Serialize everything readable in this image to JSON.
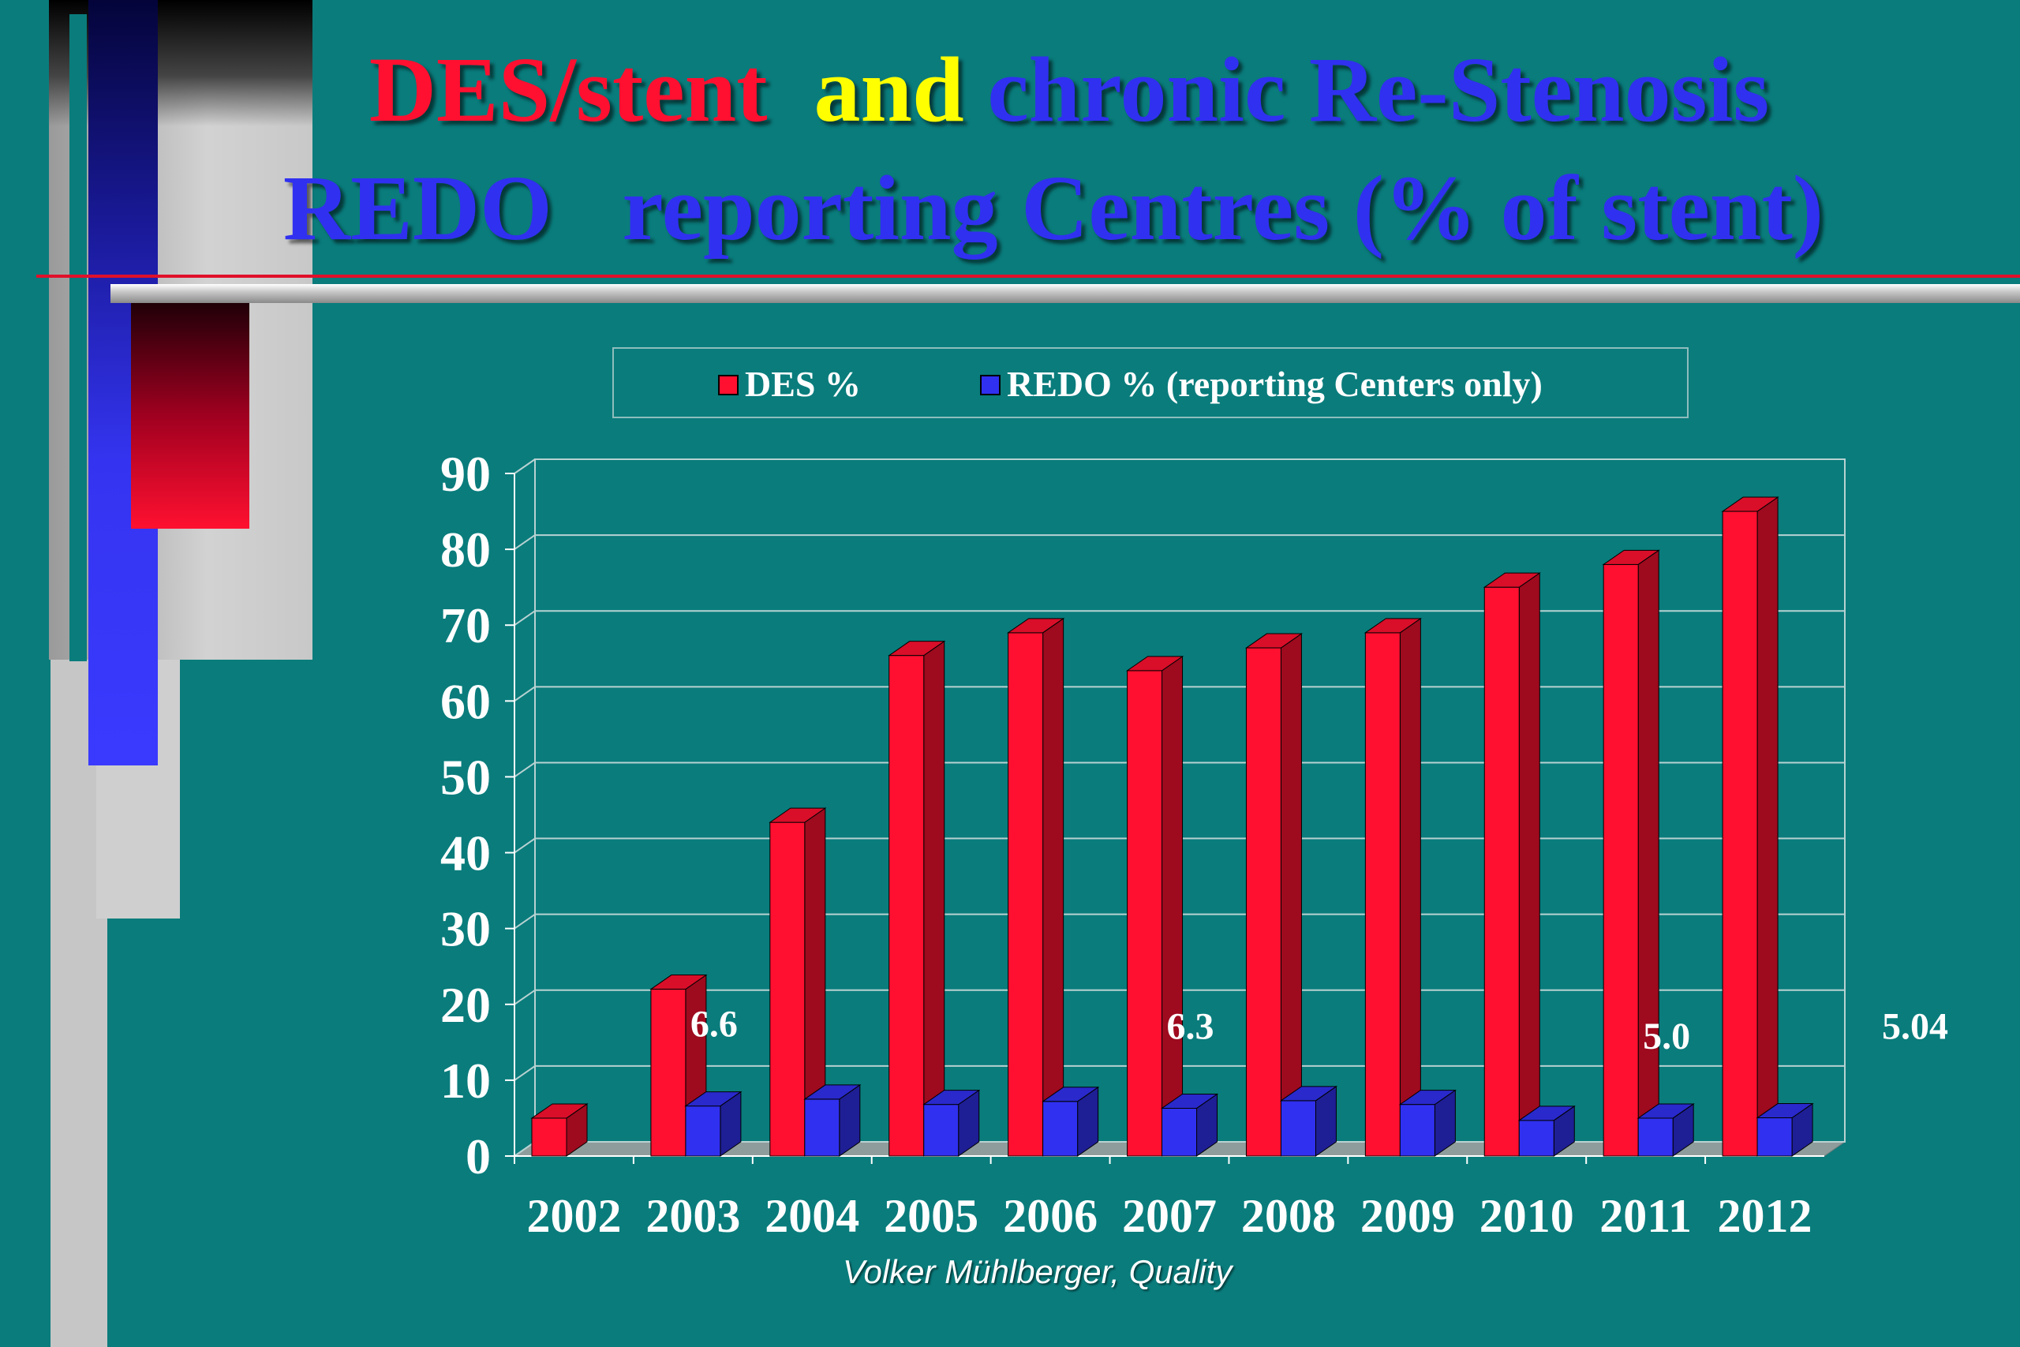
{
  "slide": {
    "title_line1": [
      {
        "text": "DES/stent",
        "color": "#ff1030"
      },
      {
        "text": "and",
        "color": "#ffff00"
      },
      {
        "text": "chronic Re-Stenosis",
        "color": "#3030f0"
      }
    ],
    "title_line2": [
      {
        "text": "REDO",
        "color": "#3030f0"
      },
      {
        "text": "reporting Centres (% of  stent)",
        "color": "#3030f0"
      }
    ],
    "credit": "Volker Mühlberger, Quality"
  },
  "chart_data": {
    "type": "bar",
    "categories": [
      "2002",
      "2003",
      "2004",
      "2005",
      "2006",
      "2007",
      "2008",
      "2009",
      "2010",
      "2011",
      "2012"
    ],
    "series": [
      {
        "name": "DES %",
        "color": "#ff1030",
        "values": [
          5,
          22,
          44,
          66,
          69,
          64,
          67,
          69,
          75,
          78,
          85
        ]
      },
      {
        "name": "REDO % (reporting Centers only)",
        "color": "#3030f0",
        "values": [
          null,
          6.6,
          7.5,
          6.8,
          7.2,
          6.3,
          7.3,
          6.8,
          4.7,
          5.0,
          5.04
        ]
      }
    ],
    "annotations": [
      {
        "text": "6.6",
        "category": "2003"
      },
      {
        "text": "6.3",
        "category": "2007"
      },
      {
        "text": "5.0",
        "category": "2011"
      },
      {
        "text": "5.04",
        "category": "2012"
      }
    ],
    "yticks": [
      "0",
      "10",
      "20",
      "30",
      "40",
      "50",
      "60",
      "70",
      "80",
      "90"
    ],
    "ylim": [
      0,
      90
    ],
    "grid": true,
    "legend": "top"
  }
}
